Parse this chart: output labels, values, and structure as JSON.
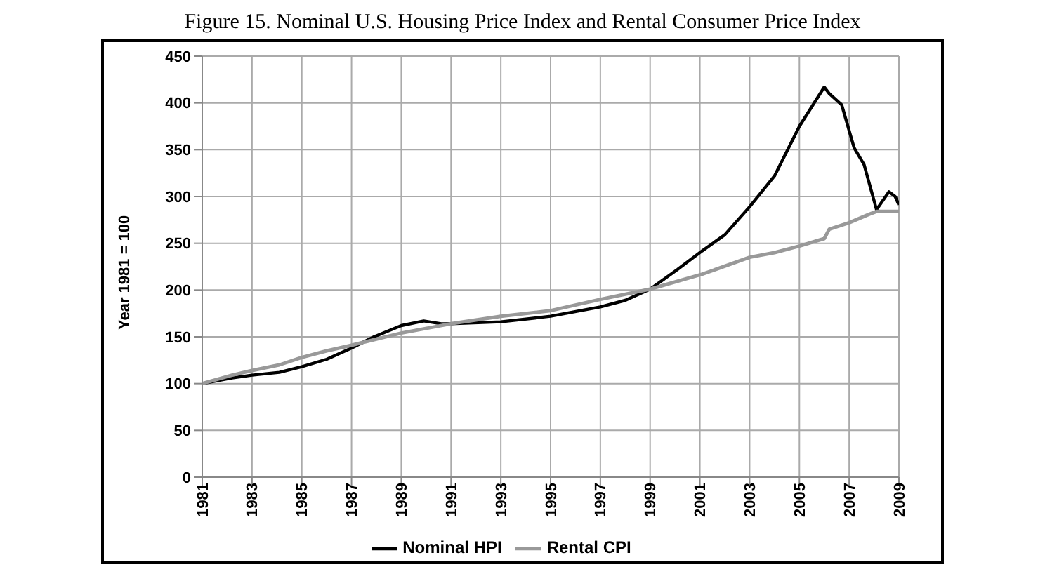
{
  "chart_data": {
    "type": "line",
    "title": "Figure 15.  Nominal U.S. Housing Price Index and Rental Consumer Price Index",
    "ylabel": "Year 1981 = 100",
    "xlim": [
      1981,
      2009
    ],
    "xticks": [
      1981,
      1983,
      1985,
      1987,
      1989,
      1991,
      1993,
      1995,
      1997,
      1999,
      2001,
      2003,
      2005,
      2007,
      2009
    ],
    "ylim": [
      0,
      450
    ],
    "yticks": [
      0,
      50,
      100,
      150,
      200,
      250,
      300,
      350,
      400,
      450
    ],
    "grid": true,
    "legend": "bottom",
    "marker": "none",
    "line_style": "solid",
    "series": [
      {
        "name": "Nominal HPI",
        "color": "#000000",
        "x": [
          1981,
          1982.2,
          1983,
          1984.1,
          1985,
          1986,
          1987,
          1987.9,
          1989,
          1989.9,
          1990.6,
          1991,
          1993,
          1995,
          1997,
          1998,
          1999,
          2000.1,
          2001.1,
          2002,
          2003,
          2004,
          2005,
          2006,
          2006.2,
          2006.7,
          2007.2,
          2007.6,
          2008.1,
          2008.6,
          2008.85,
          2009
        ],
        "values": [
          100,
          106,
          109,
          112,
          118,
          126,
          138,
          150,
          162,
          167,
          164,
          164,
          166,
          172,
          182,
          189,
          201,
          222,
          242,
          259,
          289,
          322,
          375,
          417,
          410,
          398,
          352,
          334,
          286,
          305,
          300,
          291
        ]
      },
      {
        "name": "Rental CPI",
        "color": "#999999",
        "x": [
          1981,
          1982.2,
          1983,
          1984.1,
          1985,
          1986,
          1987,
          1989,
          1991,
          1993,
          1995,
          1997,
          1999,
          2001.1,
          2003,
          2004,
          2005,
          2006,
          2006.2,
          2007,
          2007.8,
          2008.1,
          2009
        ],
        "values": [
          100,
          109,
          114,
          120,
          128,
          135,
          141,
          154,
          164,
          172,
          178,
          190,
          201,
          217,
          235,
          240,
          247,
          255,
          265,
          272,
          281,
          284,
          284
        ]
      }
    ]
  }
}
